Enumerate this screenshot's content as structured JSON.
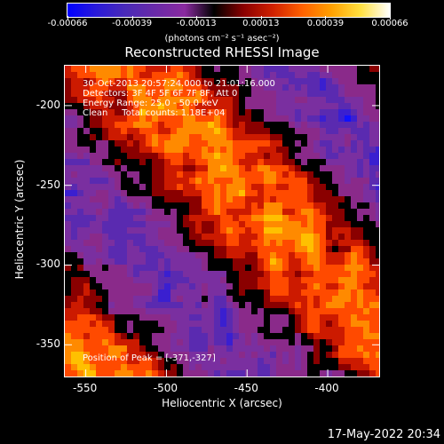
{
  "colorbar": {
    "ticks": [
      "-0.00066",
      "-0.00039",
      "-0.00013",
      "0.00013",
      "0.00039",
      "0.00066"
    ],
    "units": "(photons cm⁻² s⁻¹ asec⁻²)"
  },
  "plot": {
    "title": "Reconstructed RHESSI Image",
    "info": {
      "line1": "30-Oct-2013 20:57:24.000 to 21:01:16.000",
      "line2": "Detectors: 3F 4F 5F 6F 7F 8F, Att 0",
      "line3": "Energy Range: 25.0 - 50.0 keV",
      "line4": "Clean     Total counts: 1.18E+04"
    },
    "peak_text": "Position of Peak = [-371,-327]",
    "xlabel": "Heliocentric X (arcsec)",
    "ylabel": "Heliocentric Y (arcsec)",
    "xticks": [
      "-550",
      "-500",
      "-450",
      "-400"
    ],
    "yticks": [
      "-200",
      "-250",
      "-300",
      "-350"
    ],
    "xlim": [
      -563,
      -367
    ],
    "ylim": [
      -371,
      -175
    ]
  },
  "timestamp": "17-May-2022 20:34",
  "colors": {
    "colormap": [
      "#1010ff",
      "#3a1fd0",
      "#5a2ab0",
      "#7a2fa0",
      "#8a2a8a",
      "#000000",
      "#8a0000",
      "#cc1a00",
      "#ff4a00",
      "#ff8a00",
      "#ffc000",
      "#ffff80"
    ]
  }
}
